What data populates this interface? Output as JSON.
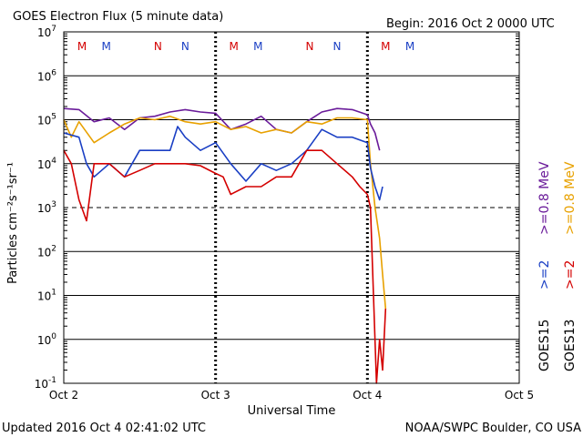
{
  "chart_data": {
    "type": "line",
    "title": "GOES Electron Flux (5 minute data)",
    "begin_label": "Begin: 2016 Oct 2 0000 UTC",
    "xlabel": "Universal Time",
    "ylabel": "Particles cm⁻²s⁻¹sr⁻¹",
    "y_scale": "log",
    "ylim": [
      0.1,
      10000000
    ],
    "y_ticks": [
      {
        "base": "10",
        "exp": "7",
        "value": 10000000
      },
      {
        "base": "10",
        "exp": "6",
        "value": 1000000
      },
      {
        "base": "10",
        "exp": "5",
        "value": 100000
      },
      {
        "base": "10",
        "exp": "4",
        "value": 10000
      },
      {
        "base": "10",
        "exp": "3",
        "value": 1000
      },
      {
        "base": "10",
        "exp": "2",
        "value": 100
      },
      {
        "base": "10",
        "exp": "1",
        "value": 10
      },
      {
        "base": "10",
        "exp": "0",
        "value": 1
      },
      {
        "base": "10",
        "exp": "-1",
        "value": 0.1
      }
    ],
    "threshold_value": 1000,
    "x_ticks": [
      "Oct 2",
      "Oct 3",
      "Oct 4",
      "Oct 5"
    ],
    "xlim_days": [
      0,
      3
    ],
    "grid": true,
    "top_markers": [
      {
        "label": "M",
        "day": 0.12,
        "color": "#d40000"
      },
      {
        "label": "M",
        "day": 0.28,
        "color": "#1a3fc4"
      },
      {
        "label": "N",
        "day": 0.62,
        "color": "#d40000"
      },
      {
        "label": "N",
        "day": 0.8,
        "color": "#1a3fc4"
      },
      {
        "label": "M",
        "day": 1.12,
        "color": "#d40000"
      },
      {
        "label": "M",
        "day": 1.28,
        "color": "#1a3fc4"
      },
      {
        "label": "N",
        "day": 1.62,
        "color": "#d40000"
      },
      {
        "label": "N",
        "day": 1.8,
        "color": "#1a3fc4"
      },
      {
        "label": "M",
        "day": 2.12,
        "color": "#d40000"
      },
      {
        "label": "M",
        "day": 2.28,
        "color": "#1a3fc4"
      }
    ],
    "legend": {
      "columns": [
        {
          "satellite": "GOES15",
          "top": ">=0.8 MeV",
          "top_color": "#6a1b9a",
          "bottom": ">=2",
          "bottom_color": "#1a3fc4"
        },
        {
          "satellite": "GOES13",
          "top": ">=0.8 MeV",
          "top_color": "#e8a100",
          "bottom": ">=2",
          "bottom_color": "#d40000"
        }
      ]
    },
    "series": [
      {
        "name": "GOES15 >=0.8 MeV",
        "color": "#6a1b9a",
        "x": [
          0,
          0.1,
          0.2,
          0.3,
          0.4,
          0.5,
          0.6,
          0.7,
          0.8,
          0.9,
          1.0,
          1.1,
          1.2,
          1.3,
          1.4,
          1.5,
          1.6,
          1.7,
          1.8,
          1.9,
          2.0,
          2.02,
          2.05,
          2.08
        ],
        "y": [
          180000,
          170000,
          90000,
          110000,
          60000,
          110000,
          120000,
          150000,
          170000,
          150000,
          140000,
          60000,
          80000,
          120000,
          60000,
          50000,
          90000,
          150000,
          180000,
          170000,
          130000,
          80000,
          50000,
          20000
        ]
      },
      {
        "name": "GOES13 >=0.8 MeV",
        "color": "#e8a100",
        "x": [
          0,
          0.05,
          0.1,
          0.2,
          0.3,
          0.4,
          0.5,
          0.6,
          0.7,
          0.8,
          0.9,
          1.0,
          1.1,
          1.2,
          1.3,
          1.4,
          1.5,
          1.6,
          1.7,
          1.8,
          1.9,
          2.0,
          2.02,
          2.05,
          2.08,
          2.1,
          2.12
        ],
        "y": [
          100000,
          40000,
          90000,
          30000,
          50000,
          80000,
          110000,
          100000,
          120000,
          90000,
          80000,
          90000,
          60000,
          70000,
          50000,
          60000,
          50000,
          90000,
          80000,
          110000,
          110000,
          100000,
          10000,
          1000,
          200,
          30,
          5
        ]
      },
      {
        "name": "GOES15 >=2 MeV",
        "color": "#1a3fc4",
        "x": [
          0,
          0.1,
          0.15,
          0.2,
          0.3,
          0.4,
          0.5,
          0.6,
          0.7,
          0.75,
          0.8,
          0.9,
          1.0,
          1.1,
          1.2,
          1.3,
          1.4,
          1.5,
          1.6,
          1.7,
          1.8,
          1.9,
          2.0,
          2.02,
          2.05,
          2.08,
          2.1
        ],
        "y": [
          50000,
          40000,
          10000,
          5000,
          10000,
          5000,
          20000,
          20000,
          20000,
          70000,
          40000,
          20000,
          30000,
          10000,
          4000,
          10000,
          7000,
          10000,
          20000,
          60000,
          40000,
          40000,
          30000,
          8000,
          3000,
          1500,
          3000
        ]
      },
      {
        "name": "GOES13 >=2 MeV",
        "color": "#d40000",
        "x": [
          0,
          0.05,
          0.1,
          0.15,
          0.2,
          0.3,
          0.4,
          0.5,
          0.6,
          0.7,
          0.8,
          0.9,
          1.0,
          1.05,
          1.1,
          1.2,
          1.3,
          1.4,
          1.5,
          1.6,
          1.7,
          1.8,
          1.9,
          1.95,
          2.0,
          2.02,
          2.04,
          2.06,
          2.08,
          2.1,
          2.12
        ],
        "y": [
          20000,
          10000,
          1500,
          500,
          10000,
          10000,
          5000,
          7000,
          10000,
          10000,
          10000,
          9000,
          6000,
          5000,
          2000,
          3000,
          3000,
          5000,
          5000,
          20000,
          20000,
          10000,
          5000,
          3000,
          2000,
          1000,
          10,
          0.1,
          1,
          0.2,
          5
        ]
      }
    ],
    "updated": "Updated 2016 Oct  4 02:41:02 UTC",
    "credit": "NOAA/SWPC Boulder, CO USA"
  }
}
